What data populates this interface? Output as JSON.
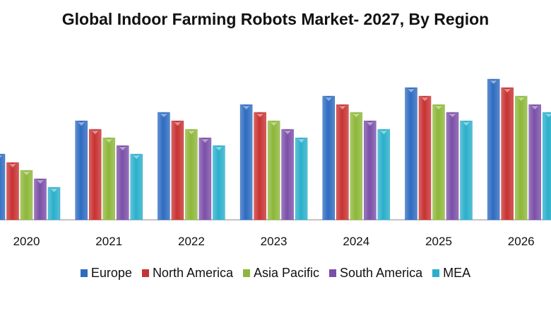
{
  "chart_data": {
    "type": "bar",
    "title": "Global Indoor Farming Robots Market- 2027, By Region",
    "categories": [
      "2020",
      "2021",
      "2022",
      "2023",
      "2024",
      "2025",
      "2026"
    ],
    "ylim": [
      0,
      210
    ],
    "grid": false,
    "legend_position": "bottom",
    "series": [
      {
        "name": "Europe",
        "color": "#2E6BC0",
        "values": [
          93,
          140,
          152,
          163,
          175,
          187,
          199
        ]
      },
      {
        "name": "North America",
        "color": "#C83232",
        "values": [
          81,
          128,
          140,
          152,
          163,
          175,
          187
        ]
      },
      {
        "name": "Asia Pacific",
        "color": "#8DB73A",
        "values": [
          70,
          116,
          128,
          140,
          152,
          163,
          175
        ]
      },
      {
        "name": "South America",
        "color": "#7B4FA8",
        "values": [
          58,
          105,
          116,
          128,
          140,
          152,
          163
        ]
      },
      {
        "name": "MEA",
        "color": "#2BAFCB",
        "values": [
          46,
          93,
          105,
          116,
          128,
          140,
          152
        ]
      }
    ]
  }
}
